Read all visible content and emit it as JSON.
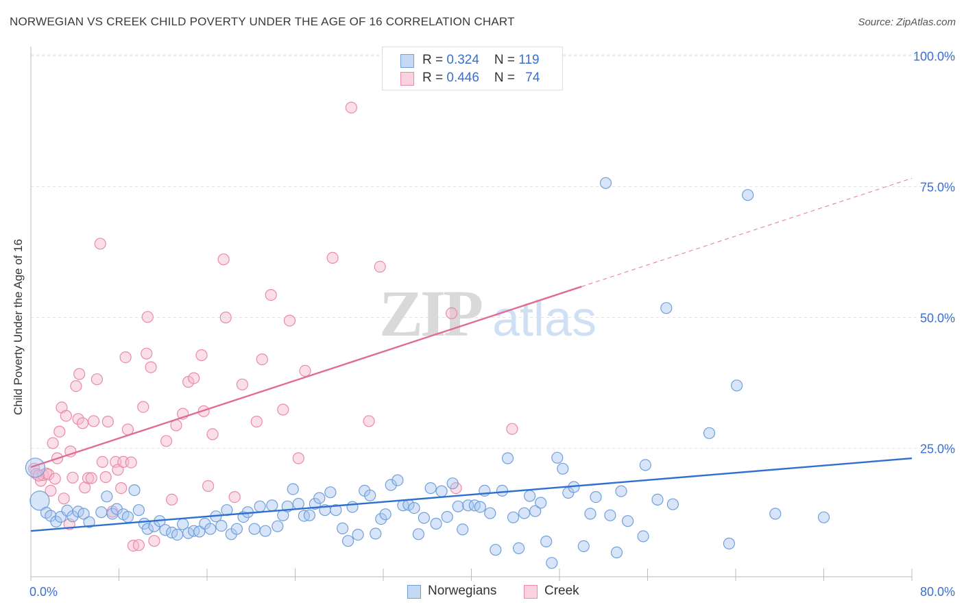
{
  "title": "NORWEGIAN VS CREEK CHILD POVERTY UNDER THE AGE OF 16 CORRELATION CHART",
  "source": "Source: ZipAtlas.com",
  "watermark": {
    "zip": "ZIP",
    "atlas": "atlas"
  },
  "legend_stats": [
    {
      "r_label": "R = ",
      "r": "0.324",
      "n_label": "N = ",
      "n": "119",
      "color": "#a8c6ef"
    },
    {
      "r_label": "R = ",
      "r": "0.446",
      "n_label": "N = ",
      "n": "74",
      "color": "#f6b9cb"
    }
  ],
  "chart_data": {
    "type": "scatter",
    "title": "NORWEGIAN VS CREEK CHILD POVERTY UNDER THE AGE OF 16 CORRELATION CHART",
    "xlabel": "",
    "ylabel": "Child Poverty Under the Age of 16",
    "xlim": [
      0,
      80
    ],
    "ylim": [
      0,
      100
    ],
    "x_tick_labels": [
      "0.0%",
      "80.0%"
    ],
    "y_tick_labels": [
      "25.0%",
      "50.0%",
      "75.0%",
      "100.0%"
    ],
    "y_ticks": [
      25,
      50,
      75,
      100
    ],
    "grid": "horizontal dashed",
    "legend": "bottom-center",
    "series": [
      {
        "name": "Norwegians",
        "color": "#a8c6ef",
        "stroke": "#6f9fdb",
        "trend_color": "#2f6fd0",
        "trend": {
          "x_start": 0,
          "y_start": 9.2,
          "x_end": 80,
          "y_end": 23.1
        },
        "points": [
          [
            0.4,
            21.3
          ],
          [
            0.8,
            15.0
          ],
          [
            1.4,
            12.7
          ],
          [
            1.8,
            12.1
          ],
          [
            2.3,
            11.0
          ],
          [
            2.7,
            11.9
          ],
          [
            3.3,
            13.1
          ],
          [
            3.8,
            12.0
          ],
          [
            4.3,
            12.9
          ],
          [
            4.8,
            12.5
          ],
          [
            5.3,
            10.9
          ],
          [
            6.4,
            12.8
          ],
          [
            6.9,
            15.8
          ],
          [
            7.4,
            12.5
          ],
          [
            7.8,
            13.4
          ],
          [
            8.4,
            12.4
          ],
          [
            8.8,
            11.9
          ],
          [
            9.4,
            17.0
          ],
          [
            9.8,
            13.2
          ],
          [
            10.3,
            10.6
          ],
          [
            10.6,
            9.6
          ],
          [
            11.2,
            10.1
          ],
          [
            11.7,
            11.1
          ],
          [
            12.2,
            9.4
          ],
          [
            12.8,
            8.9
          ],
          [
            13.3,
            8.5
          ],
          [
            13.8,
            10.5
          ],
          [
            14.3,
            8.8
          ],
          [
            14.8,
            9.2
          ],
          [
            15.3,
            9.1
          ],
          [
            15.8,
            10.6
          ],
          [
            16.3,
            9.6
          ],
          [
            16.8,
            12.0
          ],
          [
            17.3,
            10.2
          ],
          [
            17.8,
            13.2
          ],
          [
            18.2,
            8.6
          ],
          [
            18.7,
            9.6
          ],
          [
            19.3,
            11.9
          ],
          [
            19.7,
            12.8
          ],
          [
            20.3,
            9.6
          ],
          [
            20.8,
            13.9
          ],
          [
            21.3,
            9.2
          ],
          [
            21.9,
            14.1
          ],
          [
            22.4,
            10.1
          ],
          [
            22.9,
            12.2
          ],
          [
            23.3,
            13.9
          ],
          [
            23.8,
            17.2
          ],
          [
            24.3,
            14.4
          ],
          [
            24.8,
            12.1
          ],
          [
            25.3,
            12.2
          ],
          [
            25.8,
            14.4
          ],
          [
            26.2,
            15.5
          ],
          [
            26.7,
            13.2
          ],
          [
            27.2,
            16.6
          ],
          [
            27.7,
            13.2
          ],
          [
            28.3,
            9.7
          ],
          [
            28.8,
            7.3
          ],
          [
            29.2,
            13.8
          ],
          [
            29.7,
            8.5
          ],
          [
            30.3,
            16.9
          ],
          [
            30.8,
            16.0
          ],
          [
            31.3,
            8.7
          ],
          [
            31.8,
            11.5
          ],
          [
            32.2,
            12.4
          ],
          [
            32.7,
            18.0
          ],
          [
            33.3,
            18.9
          ],
          [
            33.8,
            14.1
          ],
          [
            34.3,
            14.2
          ],
          [
            34.8,
            13.6
          ],
          [
            35.2,
            8.6
          ],
          [
            35.7,
            11.7
          ],
          [
            36.3,
            17.4
          ],
          [
            36.8,
            10.6
          ],
          [
            37.3,
            16.8
          ],
          [
            37.8,
            11.9
          ],
          [
            38.3,
            18.3
          ],
          [
            38.8,
            13.9
          ],
          [
            39.2,
            9.5
          ],
          [
            39.7,
            14.1
          ],
          [
            40.3,
            14.1
          ],
          [
            40.8,
            13.8
          ],
          [
            41.2,
            16.9
          ],
          [
            41.7,
            12.6
          ],
          [
            42.2,
            5.6
          ],
          [
            42.8,
            16.9
          ],
          [
            43.3,
            23.1
          ],
          [
            43.8,
            11.8
          ],
          [
            44.3,
            5.9
          ],
          [
            44.8,
            12.6
          ],
          [
            45.3,
            15.9
          ],
          [
            45.8,
            13.0
          ],
          [
            46.3,
            14.6
          ],
          [
            46.8,
            7.2
          ],
          [
            47.3,
            3.1
          ],
          [
            47.8,
            23.2
          ],
          [
            48.3,
            21.1
          ],
          [
            48.8,
            16.5
          ],
          [
            49.3,
            17.6
          ],
          [
            50.2,
            6.3
          ],
          [
            50.8,
            12.5
          ],
          [
            51.3,
            15.7
          ],
          [
            52.2,
            75.7
          ],
          [
            52.6,
            12.2
          ],
          [
            53.2,
            5.1
          ],
          [
            53.6,
            16.8
          ],
          [
            54.2,
            11.1
          ],
          [
            55.6,
            8.2
          ],
          [
            55.8,
            21.8
          ],
          [
            56.9,
            15.2
          ],
          [
            57.7,
            51.8
          ],
          [
            58.3,
            14.3
          ],
          [
            61.6,
            27.9
          ],
          [
            63.4,
            6.8
          ],
          [
            64.1,
            37.0
          ],
          [
            65.1,
            73.4
          ],
          [
            67.6,
            12.5
          ],
          [
            72.0,
            11.8
          ]
        ]
      },
      {
        "name": "Creek",
        "color": "#f6b9cb",
        "stroke": "#e98aa6",
        "trend_color": "#e06b95",
        "trend": {
          "x_start": 0,
          "y_start": 21.4,
          "x_end": 50,
          "y_end": 55.9
        },
        "trend_extension": {
          "x_start": 50,
          "y_start": 55.9,
          "x_end": 80,
          "y_end": 76.6
        },
        "points": [
          [
            0.3,
            21.1
          ],
          [
            0.5,
            20.1
          ],
          [
            0.9,
            18.8
          ],
          [
            1.1,
            19.9
          ],
          [
            1.4,
            20.2
          ],
          [
            1.6,
            20.0
          ],
          [
            1.8,
            16.9
          ],
          [
            2.0,
            26.0
          ],
          [
            2.2,
            19.2
          ],
          [
            2.4,
            23.1
          ],
          [
            2.6,
            28.2
          ],
          [
            2.8,
            32.8
          ],
          [
            3.0,
            15.4
          ],
          [
            3.2,
            31.2
          ],
          [
            3.5,
            10.5
          ],
          [
            3.6,
            24.4
          ],
          [
            3.8,
            19.4
          ],
          [
            4.1,
            36.9
          ],
          [
            4.3,
            30.6
          ],
          [
            4.4,
            39.2
          ],
          [
            4.7,
            29.8
          ],
          [
            4.9,
            17.5
          ],
          [
            5.2,
            19.3
          ],
          [
            5.5,
            19.3
          ],
          [
            5.7,
            30.2
          ],
          [
            6.0,
            38.2
          ],
          [
            6.3,
            64.1
          ],
          [
            6.5,
            22.4
          ],
          [
            6.8,
            19.5
          ],
          [
            7.0,
            30.1
          ],
          [
            7.4,
            12.9
          ],
          [
            7.7,
            22.4
          ],
          [
            7.9,
            20.9
          ],
          [
            8.2,
            17.4
          ],
          [
            8.4,
            22.4
          ],
          [
            8.6,
            42.4
          ],
          [
            8.8,
            28.6
          ],
          [
            9.1,
            22.3
          ],
          [
            9.3,
            6.4
          ],
          [
            9.8,
            6.5
          ],
          [
            10.2,
            32.9
          ],
          [
            10.5,
            43.1
          ],
          [
            10.6,
            50.1
          ],
          [
            10.9,
            40.5
          ],
          [
            11.2,
            7.3
          ],
          [
            12.3,
            26.4
          ],
          [
            12.8,
            15.2
          ],
          [
            13.2,
            29.4
          ],
          [
            13.8,
            31.6
          ],
          [
            14.3,
            37.7
          ],
          [
            14.8,
            38.4
          ],
          [
            15.5,
            42.8
          ],
          [
            15.7,
            32.1
          ],
          [
            16.1,
            17.8
          ],
          [
            16.5,
            27.7
          ],
          [
            17.5,
            61.1
          ],
          [
            17.7,
            50.0
          ],
          [
            18.5,
            15.7
          ],
          [
            19.2,
            37.2
          ],
          [
            20.5,
            30.1
          ],
          [
            21.0,
            42.0
          ],
          [
            21.8,
            54.3
          ],
          [
            22.9,
            32.4
          ],
          [
            23.5,
            49.4
          ],
          [
            24.3,
            23.1
          ],
          [
            24.9,
            39.8
          ],
          [
            27.4,
            61.4
          ],
          [
            29.1,
            90.1
          ],
          [
            30.7,
            30.2
          ],
          [
            31.7,
            59.7
          ],
          [
            38.2,
            50.8
          ],
          [
            38.6,
            17.4
          ],
          [
            43.7,
            28.7
          ],
          [
            0.7,
            19.8
          ]
        ]
      }
    ]
  }
}
